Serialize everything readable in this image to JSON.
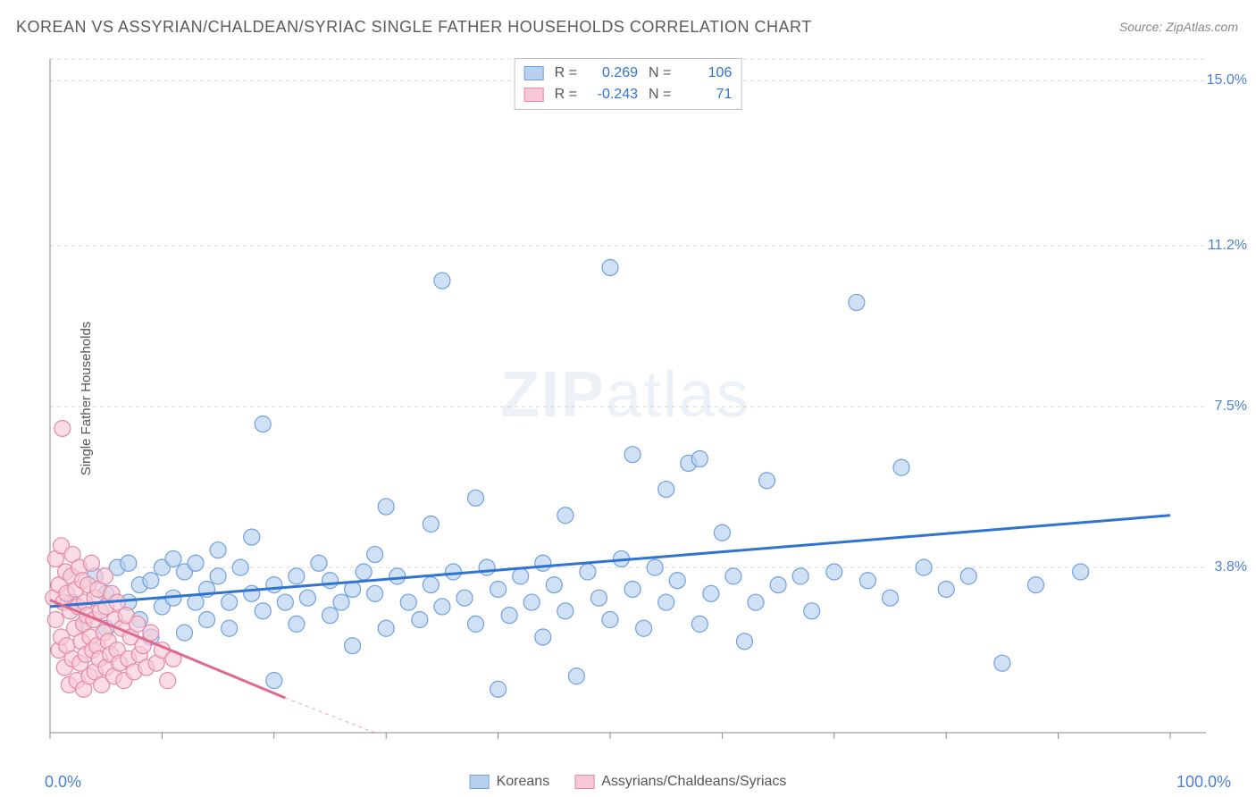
{
  "title": "KOREAN VS ASSYRIAN/CHALDEAN/SYRIAC SINGLE FATHER HOUSEHOLDS CORRELATION CHART",
  "source": "Source: ZipAtlas.com",
  "y_axis_label": "Single Father Households",
  "watermark_bold": "ZIP",
  "watermark_light": "atlas",
  "chart": {
    "type": "scatter",
    "xlim": [
      0,
      100
    ],
    "ylim": [
      0,
      15.5
    ],
    "x_axis": {
      "min_label": "0.0%",
      "max_label": "100.0%",
      "tick_positions": [
        0,
        10,
        20,
        30,
        40,
        50,
        60,
        70,
        80,
        90,
        100
      ]
    },
    "y_axis": {
      "ticks": [
        {
          "value": 3.8,
          "label": "3.8%"
        },
        {
          "value": 7.5,
          "label": "7.5%"
        },
        {
          "value": 11.2,
          "label": "11.2%"
        },
        {
          "value": 15.0,
          "label": "15.0%"
        }
      ]
    },
    "grid_color": "#d8d8d8",
    "axis_color": "#888888",
    "background_color": "#ffffff",
    "series": [
      {
        "name": "Koreans",
        "legend_label": "Koreans",
        "marker_fill": "#b9d1f0",
        "marker_stroke": "#6fa0de",
        "marker_radius": 9,
        "line_color": "#2f74d0",
        "line_width": 3,
        "regression": {
          "x1": 0,
          "y1": 2.9,
          "x2": 100,
          "y2": 5.0
        },
        "R": 0.269,
        "N": 106,
        "points": [
          [
            2,
            3.0
          ],
          [
            3,
            2.5
          ],
          [
            4,
            3.6
          ],
          [
            5,
            3.2
          ],
          [
            5,
            2.4
          ],
          [
            6,
            3.8
          ],
          [
            7,
            3.0
          ],
          [
            7,
            3.9
          ],
          [
            8,
            2.6
          ],
          [
            8,
            3.4
          ],
          [
            9,
            3.5
          ],
          [
            9,
            2.2
          ],
          [
            10,
            3.8
          ],
          [
            10,
            2.9
          ],
          [
            11,
            3.1
          ],
          [
            11,
            4.0
          ],
          [
            12,
            3.7
          ],
          [
            12,
            2.3
          ],
          [
            13,
            3.9
          ],
          [
            13,
            3.0
          ],
          [
            14,
            3.3
          ],
          [
            14,
            2.6
          ],
          [
            15,
            3.6
          ],
          [
            15,
            4.2
          ],
          [
            16,
            3.0
          ],
          [
            16,
            2.4
          ],
          [
            17,
            3.8
          ],
          [
            18,
            3.2
          ],
          [
            18,
            4.5
          ],
          [
            19,
            2.8
          ],
          [
            19,
            7.1
          ],
          [
            20,
            3.4
          ],
          [
            20,
            1.2
          ],
          [
            21,
            3.0
          ],
          [
            22,
            3.6
          ],
          [
            22,
            2.5
          ],
          [
            23,
            3.1
          ],
          [
            24,
            3.9
          ],
          [
            25,
            2.7
          ],
          [
            25,
            3.5
          ],
          [
            26,
            3.0
          ],
          [
            27,
            3.3
          ],
          [
            27,
            2.0
          ],
          [
            28,
            3.7
          ],
          [
            29,
            3.2
          ],
          [
            29,
            4.1
          ],
          [
            30,
            2.4
          ],
          [
            30,
            5.2
          ],
          [
            31,
            3.6
          ],
          [
            32,
            3.0
          ],
          [
            33,
            2.6
          ],
          [
            34,
            3.4
          ],
          [
            34,
            4.8
          ],
          [
            35,
            2.9
          ],
          [
            35,
            10.4
          ],
          [
            36,
            3.7
          ],
          [
            37,
            3.1
          ],
          [
            38,
            2.5
          ],
          [
            38,
            5.4
          ],
          [
            39,
            3.8
          ],
          [
            40,
            3.3
          ],
          [
            40,
            1.0
          ],
          [
            41,
            2.7
          ],
          [
            42,
            3.6
          ],
          [
            43,
            3.0
          ],
          [
            44,
            3.9
          ],
          [
            44,
            2.2
          ],
          [
            45,
            3.4
          ],
          [
            46,
            5.0
          ],
          [
            46,
            2.8
          ],
          [
            47,
            1.3
          ],
          [
            48,
            3.7
          ],
          [
            49,
            3.1
          ],
          [
            50,
            10.7
          ],
          [
            50,
            2.6
          ],
          [
            51,
            4.0
          ],
          [
            52,
            3.3
          ],
          [
            52,
            6.4
          ],
          [
            53,
            2.4
          ],
          [
            54,
            3.8
          ],
          [
            55,
            3.0
          ],
          [
            55,
            5.6
          ],
          [
            56,
            3.5
          ],
          [
            57,
            6.2
          ],
          [
            58,
            2.5
          ],
          [
            58,
            6.3
          ],
          [
            59,
            3.2
          ],
          [
            60,
            4.6
          ],
          [
            61,
            3.6
          ],
          [
            62,
            2.1
          ],
          [
            63,
            3.0
          ],
          [
            64,
            5.8
          ],
          [
            65,
            3.4
          ],
          [
            67,
            3.6
          ],
          [
            68,
            2.8
          ],
          [
            70,
            3.7
          ],
          [
            72,
            9.9
          ],
          [
            73,
            3.5
          ],
          [
            75,
            3.1
          ],
          [
            76,
            6.1
          ],
          [
            78,
            3.8
          ],
          [
            80,
            3.3
          ],
          [
            82,
            3.6
          ],
          [
            85,
            1.6
          ],
          [
            88,
            3.4
          ],
          [
            92,
            3.7
          ]
        ]
      },
      {
        "name": "Assyrians/Chaldeans/Syriacs",
        "legend_label": "Assyrians/Chaldeans/Syriacs",
        "marker_fill": "#f7c9d6",
        "marker_stroke": "#e389a6",
        "marker_radius": 9,
        "line_color": "#e06a8d",
        "line_width": 3,
        "regression": {
          "x1": 0,
          "y1": 3.05,
          "x2": 21,
          "y2": 0.8
        },
        "dashed_extension": {
          "x1": 21,
          "y1": 0.8,
          "x2": 29,
          "y2": 0
        },
        "R": -0.243,
        "N": 71,
        "points": [
          [
            0.3,
            3.1
          ],
          [
            0.5,
            2.6
          ],
          [
            0.5,
            4.0
          ],
          [
            0.8,
            3.4
          ],
          [
            0.8,
            1.9
          ],
          [
            1.0,
            2.2
          ],
          [
            1.0,
            4.3
          ],
          [
            1.1,
            7.0
          ],
          [
            1.2,
            3.0
          ],
          [
            1.3,
            1.5
          ],
          [
            1.4,
            3.7
          ],
          [
            1.5,
            2.0
          ],
          [
            1.5,
            3.2
          ],
          [
            1.7,
            1.1
          ],
          [
            1.8,
            2.8
          ],
          [
            1.9,
            3.6
          ],
          [
            2.0,
            1.7
          ],
          [
            2.0,
            4.1
          ],
          [
            2.2,
            2.4
          ],
          [
            2.3,
            3.3
          ],
          [
            2.4,
            1.2
          ],
          [
            2.5,
            2.9
          ],
          [
            2.6,
            3.8
          ],
          [
            2.7,
            1.6
          ],
          [
            2.8,
            2.1
          ],
          [
            2.9,
            3.5
          ],
          [
            3.0,
            2.5
          ],
          [
            3.0,
            1.0
          ],
          [
            3.1,
            3.0
          ],
          [
            3.2,
            1.8
          ],
          [
            3.3,
            2.7
          ],
          [
            3.4,
            3.4
          ],
          [
            3.5,
            1.3
          ],
          [
            3.6,
            2.2
          ],
          [
            3.7,
            3.9
          ],
          [
            3.8,
            1.9
          ],
          [
            3.9,
            2.6
          ],
          [
            4.0,
            3.1
          ],
          [
            4.0,
            1.4
          ],
          [
            4.2,
            2.0
          ],
          [
            4.3,
            3.3
          ],
          [
            4.4,
            1.7
          ],
          [
            4.5,
            2.8
          ],
          [
            4.6,
            1.1
          ],
          [
            4.8,
            2.3
          ],
          [
            4.9,
            3.6
          ],
          [
            5.0,
            1.5
          ],
          [
            5.0,
            2.9
          ],
          [
            5.2,
            2.1
          ],
          [
            5.4,
            1.8
          ],
          [
            5.5,
            3.2
          ],
          [
            5.7,
            1.3
          ],
          [
            5.8,
            2.6
          ],
          [
            6.0,
            1.9
          ],
          [
            6.0,
            3.0
          ],
          [
            6.2,
            1.6
          ],
          [
            6.4,
            2.4
          ],
          [
            6.6,
            1.2
          ],
          [
            6.8,
            2.7
          ],
          [
            7.0,
            1.7
          ],
          [
            7.2,
            2.2
          ],
          [
            7.5,
            1.4
          ],
          [
            7.8,
            2.5
          ],
          [
            8.0,
            1.8
          ],
          [
            8.3,
            2.0
          ],
          [
            8.6,
            1.5
          ],
          [
            9.0,
            2.3
          ],
          [
            9.5,
            1.6
          ],
          [
            10.0,
            1.9
          ],
          [
            10.5,
            1.2
          ],
          [
            11.0,
            1.7
          ]
        ]
      }
    ],
    "stats_legend": {
      "label_R": "R =",
      "label_N": "N =",
      "value_color": "#2f74d0"
    },
    "bottom_legend": {
      "items": [
        "Koreans",
        "Assyrians/Chaldeans/Syriacs"
      ]
    }
  }
}
